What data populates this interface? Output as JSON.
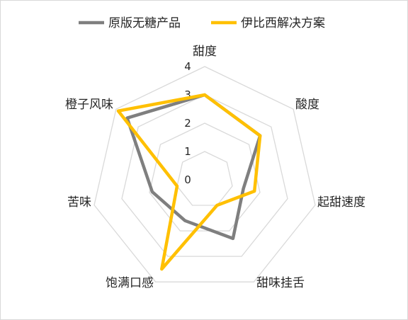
{
  "chart_data": {
    "type": "radar",
    "title": "",
    "axes": [
      "甜度",
      "酸度",
      "起甜速度",
      "甜味挂舌",
      "饱满口感",
      "苦味",
      "橙子风味"
    ],
    "r_ticks": [
      "0",
      "1",
      "2",
      "3",
      "4"
    ],
    "r_range": [
      0,
      4
    ],
    "grid": true,
    "legend_position": "top",
    "series": [
      {
        "name": "原版无糖产品",
        "color": "#7f7f7f",
        "values": [
          3.0,
          2.5,
          1.4,
          2.3,
          1.6,
          1.9,
          3.5
        ]
      },
      {
        "name": "伊比西解决方案",
        "color": "#ffc000",
        "values": [
          3.0,
          2.5,
          1.8,
          1.0,
          3.5,
          1.0,
          3.9
        ]
      }
    ]
  }
}
